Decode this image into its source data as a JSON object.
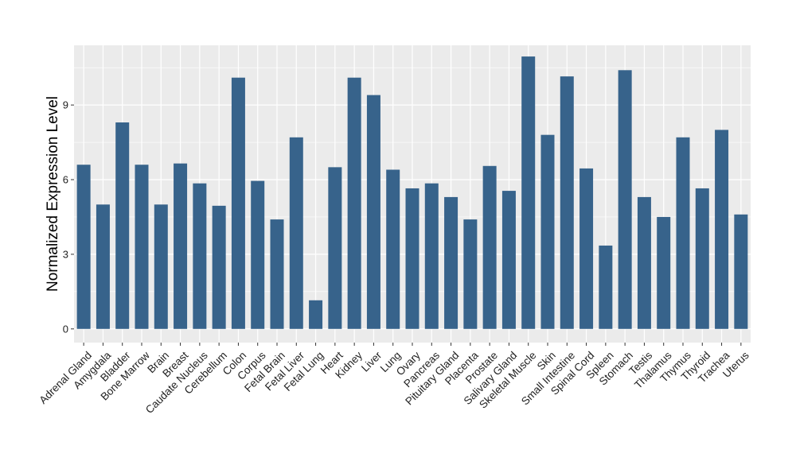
{
  "chart_data": {
    "type": "bar",
    "ylabel": "Normalized Expression Level",
    "xlabel": "",
    "ylim": [
      -0.55,
      11.4
    ],
    "yticks": [
      0,
      3,
      6,
      9
    ],
    "grid": true,
    "colors": {
      "bar": "#37638B",
      "panel": "#EBEBEB",
      "grid": "#FFFFFF",
      "text": "#222222"
    },
    "categories": [
      "Adrenal Gland",
      "Amygdala",
      "Bladder",
      "Bone Marrow",
      "Brain",
      "Breast",
      "Caudate Nucleus",
      "Cerebellum",
      "Colon",
      "Corpus",
      "Fetal Brain",
      "Fetal Liver",
      "Fetal Lung",
      "Heart",
      "Kidney",
      "Liver",
      "Lung",
      "Ovary",
      "Pancreas",
      "Pituitary Gland",
      "Placenta",
      "Prostate",
      "Salivary Gland",
      "Skeletal Muscle",
      "Skin",
      "Small Intestine",
      "Spinal Cord",
      "Spleen",
      "Stomach",
      "Testis",
      "Thalamus",
      "Thymus",
      "Thyroid",
      "Trachea",
      "Uterus"
    ],
    "values": [
      6.6,
      5.0,
      8.3,
      6.6,
      5.0,
      6.65,
      5.85,
      4.95,
      10.1,
      5.95,
      4.4,
      7.7,
      1.15,
      6.5,
      10.1,
      9.4,
      6.4,
      5.65,
      5.85,
      5.3,
      4.4,
      6.55,
      5.55,
      10.95,
      7.8,
      10.15,
      6.45,
      3.35,
      10.4,
      5.3,
      4.5,
      7.7,
      5.65,
      8.0,
      4.6
    ]
  }
}
